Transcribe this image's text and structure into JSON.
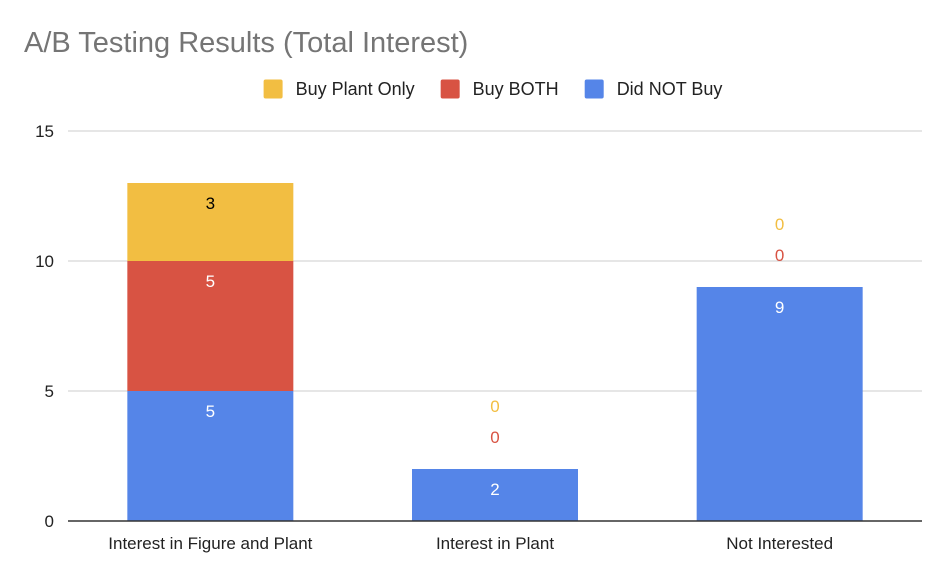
{
  "chart_data": {
    "type": "bar",
    "stacked": true,
    "title": "A/B Testing Results (Total Interest)",
    "xlabel": "",
    "ylabel": "",
    "categories": [
      "Interest in Figure and Plant",
      "Interest in Plant",
      "Not Interested"
    ],
    "series": [
      {
        "name": "Did NOT Buy",
        "color": "#5585e8",
        "label_color": "#ffffff",
        "values": [
          5,
          2,
          9
        ]
      },
      {
        "name": "Buy BOTH",
        "color": "#d85343",
        "label_color": "#ffffff",
        "values": [
          5,
          0,
          0
        ]
      },
      {
        "name": "Buy Plant Only",
        "color": "#f2be42",
        "label_color": "#000000",
        "values": [
          3,
          0,
          0
        ]
      }
    ],
    "legend_order": [
      "Buy Plant Only",
      "Buy BOTH",
      "Did NOT Buy"
    ],
    "legend_position": "top",
    "ylim": [
      0,
      15
    ],
    "yticks": [
      "0",
      "5",
      "10",
      "15"
    ],
    "grid": true
  }
}
